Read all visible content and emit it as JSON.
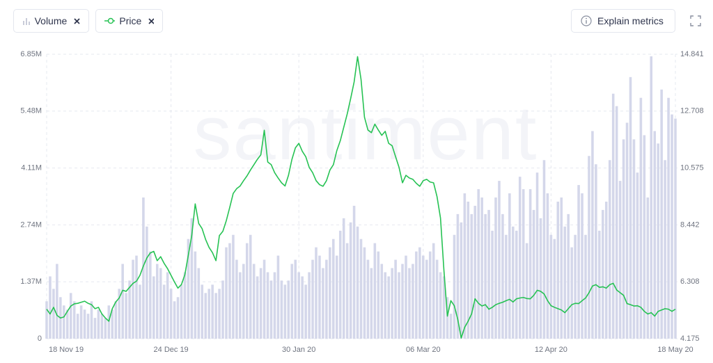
{
  "chart_data": {
    "type": "bar-line",
    "watermark": "santiment",
    "explain_metrics": "Explain metrics",
    "categories": [
      "18 Nov 19",
      null,
      null,
      null,
      null,
      null,
      null,
      null,
      null,
      null,
      null,
      null,
      null,
      null,
      null,
      null,
      null,
      null,
      null,
      null,
      null,
      null,
      null,
      null,
      null,
      null,
      null,
      null,
      null,
      null,
      null,
      null,
      null,
      null,
      null,
      null,
      "24 Dec 19",
      null,
      null,
      null,
      null,
      null,
      null,
      null,
      null,
      null,
      null,
      null,
      null,
      null,
      null,
      null,
      null,
      null,
      null,
      null,
      null,
      null,
      null,
      null,
      null,
      null,
      null,
      null,
      null,
      null,
      null,
      null,
      null,
      null,
      null,
      null,
      null,
      "30 Jan 20",
      null,
      null,
      null,
      null,
      null,
      null,
      null,
      null,
      null,
      null,
      null,
      null,
      null,
      null,
      null,
      null,
      null,
      null,
      null,
      null,
      null,
      null,
      null,
      null,
      null,
      null,
      null,
      null,
      null,
      null,
      null,
      null,
      null,
      null,
      null,
      "06 Mar 20",
      null,
      null,
      null,
      null,
      null,
      null,
      null,
      null,
      null,
      null,
      null,
      null,
      null,
      null,
      null,
      null,
      null,
      null,
      null,
      null,
      null,
      null,
      null,
      null,
      null,
      null,
      null,
      null,
      null,
      null,
      null,
      null,
      null,
      null,
      null,
      null,
      "12 Apr 20",
      null,
      null,
      null,
      null,
      null,
      null,
      null,
      null,
      null,
      null,
      null,
      null,
      null,
      null,
      null,
      null,
      null,
      null,
      null,
      null,
      null,
      null,
      null,
      null,
      null,
      null,
      null,
      null,
      null,
      null,
      null,
      null,
      null,
      null,
      null,
      "18 May 20"
    ],
    "series": [
      {
        "name": "Volume",
        "type": "bar",
        "axis": "y",
        "color": "#d4d7ea",
        "values": [
          900000,
          1500000,
          1200000,
          1800000,
          1000000,
          800000,
          700000,
          1100000,
          900000,
          600000,
          800000,
          700000,
          600000,
          900000,
          500000,
          700000,
          600000,
          500000,
          800000,
          700000,
          900000,
          1200000,
          1800000,
          1100000,
          1400000,
          1900000,
          2000000,
          1300000,
          3400000,
          2700000,
          2100000,
          1500000,
          1800000,
          1700000,
          1300000,
          1600000,
          1200000,
          900000,
          1000000,
          1300000,
          1600000,
          2400000,
          2900000,
          2100000,
          1700000,
          1300000,
          1100000,
          1200000,
          1300000,
          1100000,
          1200000,
          1400000,
          2200000,
          2300000,
          2500000,
          1900000,
          1600000,
          1800000,
          2300000,
          2500000,
          1800000,
          1500000,
          1700000,
          1900000,
          1600000,
          1400000,
          1600000,
          2000000,
          1400000,
          1300000,
          1400000,
          1800000,
          1900000,
          1600000,
          1500000,
          1300000,
          1600000,
          1900000,
          2200000,
          2000000,
          1700000,
          1900000,
          2200000,
          2400000,
          2000000,
          2600000,
          2900000,
          2300000,
          2800000,
          3200000,
          2700000,
          2400000,
          2200000,
          1900000,
          1700000,
          2300000,
          2100000,
          1800000,
          1600000,
          1500000,
          1700000,
          1900000,
          1600000,
          1800000,
          2000000,
          1700000,
          1800000,
          2100000,
          2200000,
          2000000,
          1900000,
          2100000,
          2300000,
          1900000,
          1600000,
          1500000,
          1000000,
          600000,
          2500000,
          3000000,
          2800000,
          3500000,
          3300000,
          3000000,
          3200000,
          3600000,
          3400000,
          3000000,
          3100000,
          2600000,
          3400000,
          3800000,
          3000000,
          2500000,
          3500000,
          2700000,
          2600000,
          3900000,
          3600000,
          2300000,
          3600000,
          3100000,
          4000000,
          2900000,
          4300000,
          3500000,
          2500000,
          2400000,
          3300000,
          3400000,
          2700000,
          3000000,
          2200000,
          2500000,
          3700000,
          3500000,
          2500000,
          4400000,
          5000000,
          4200000,
          2600000,
          3100000,
          3300000,
          4300000,
          5900000,
          5600000,
          3800000,
          4800000,
          5200000,
          6300000,
          4800000,
          4000000,
          5800000,
          4900000,
          3400000,
          6800000,
          5000000,
          4700000,
          6000000,
          4300000,
          5800000,
          5400000,
          5300000
        ]
      },
      {
        "name": "Price",
        "type": "line",
        "axis": "y2",
        "color": "#26c253",
        "values": [
          5.28,
          5.1,
          5.35,
          5.05,
          4.95,
          4.99,
          5.2,
          5.4,
          5.48,
          5.5,
          5.54,
          5.58,
          5.5,
          5.45,
          5.3,
          5.35,
          5.1,
          4.95,
          4.83,
          5.3,
          5.55,
          5.7,
          5.99,
          5.95,
          6.1,
          6.25,
          6.33,
          6.55,
          6.9,
          7.2,
          7.39,
          7.45,
          7.1,
          7.25,
          7.0,
          6.8,
          6.55,
          6.3,
          6.07,
          6.2,
          6.57,
          7.3,
          8.04,
          9.23,
          8.5,
          8.3,
          7.9,
          7.6,
          7.4,
          7.1,
          8.04,
          8.2,
          8.6,
          9.1,
          9.62,
          9.8,
          9.9,
          10.1,
          10.28,
          10.5,
          10.7,
          10.9,
          11.07,
          11.99,
          10.8,
          10.7,
          10.4,
          10.2,
          10.02,
          9.9,
          10.3,
          10.9,
          11.33,
          11.5,
          11.2,
          11.0,
          10.6,
          10.4,
          10.1,
          9.95,
          9.89,
          10.1,
          10.5,
          10.7,
          11.23,
          11.6,
          12.1,
          12.6,
          13.18,
          13.8,
          14.75,
          13.9,
          12.48,
          12.0,
          11.9,
          12.22,
          12.0,
          11.8,
          11.95,
          11.5,
          11.41,
          11.0,
          10.6,
          10.02,
          10.3,
          10.2,
          10.15,
          10.0,
          9.89,
          10.1,
          10.15,
          10.05,
          10.02,
          9.5,
          8.7,
          6.73,
          5.02,
          5.6,
          5.41,
          4.9,
          4.2,
          4.6,
          4.83,
          5.1,
          5.67,
          5.5,
          5.4,
          5.45,
          5.28,
          5.35,
          5.45,
          5.5,
          5.54,
          5.6,
          5.65,
          5.55,
          5.67,
          5.7,
          5.72,
          5.68,
          5.67,
          5.8,
          5.99,
          5.95,
          5.85,
          5.6,
          5.41,
          5.35,
          5.3,
          5.25,
          5.15,
          5.3,
          5.45,
          5.5,
          5.49,
          5.6,
          5.7,
          5.9,
          6.15,
          6.2,
          6.1,
          6.12,
          6.07,
          6.2,
          6.25,
          6.0,
          5.9,
          5.8,
          5.49,
          5.45,
          5.4,
          5.41,
          5.35,
          5.2,
          5.1,
          5.15,
          5.02,
          5.2,
          5.25,
          5.3,
          5.28,
          5.2,
          5.28
        ]
      }
    ],
    "ylim": [
      0,
      6850000
    ],
    "yticks": [
      0,
      {
        "value": 1370000,
        "label": "1.37M"
      },
      {
        "value": 2740000,
        "label": "2.74M"
      },
      {
        "value": 4110000,
        "label": "4.11M"
      },
      {
        "value": 5480000,
        "label": "5.48M"
      },
      {
        "value": 6850000,
        "label": "6.85M"
      }
    ],
    "y2lim": [
      4.175,
      14.841
    ],
    "y2ticks": [
      4.175,
      6.308,
      8.442,
      10.575,
      12.708,
      14.841
    ],
    "grid": true
  }
}
